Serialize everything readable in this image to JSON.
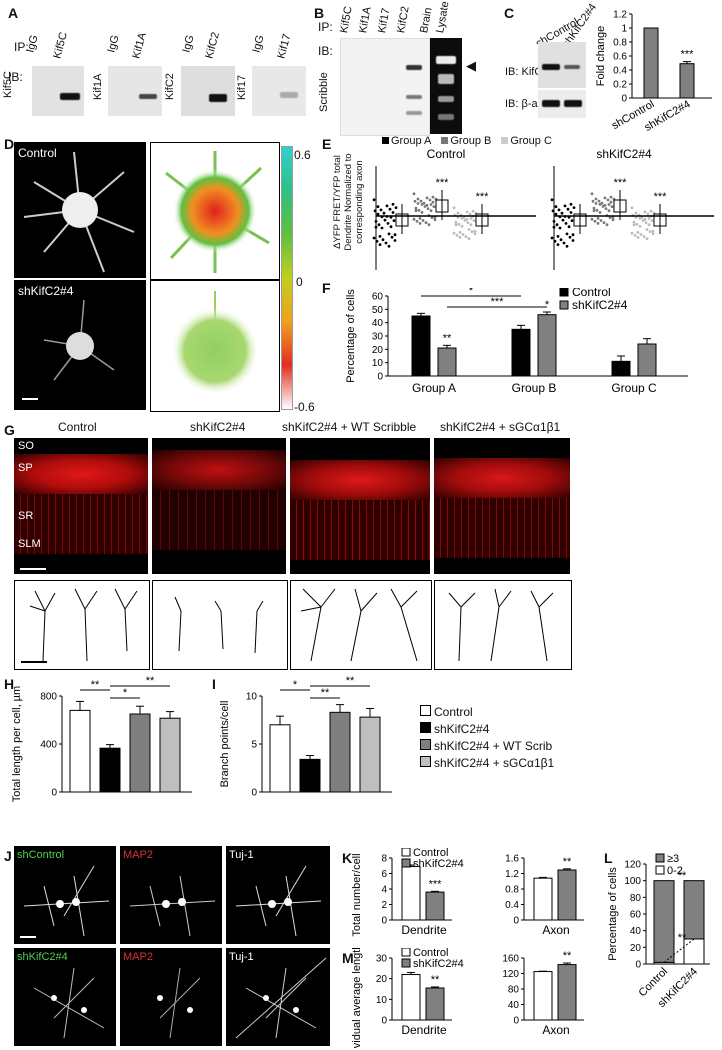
{
  "panels": {
    "A": {
      "letter": "A",
      "ip_label": "IP:",
      "ib_label": "IB:",
      "blots": [
        {
          "ib": "Kif5C",
          "lanes": [
            "IgG",
            "Kif5C"
          ]
        },
        {
          "ib": "Kif1A",
          "lanes": [
            "IgG",
            "Kif1A"
          ]
        },
        {
          "ib": "KifC2",
          "lanes": [
            "IgG",
            "KifC2"
          ]
        },
        {
          "ib": "Kif17",
          "lanes": [
            "IgG",
            "Kif17"
          ]
        }
      ]
    },
    "B": {
      "letter": "B",
      "ip_label": "IP:",
      "ib_label": "IB:",
      "ib_target": "Scribble",
      "lanes": [
        "Kif5C",
        "Kif1A",
        "Kif17",
        "KifC2",
        "Brain",
        "Lysate"
      ],
      "arrow": "◀"
    },
    "C": {
      "letter": "C",
      "lanes": [
        "shControl",
        "shKifC2#4"
      ],
      "ib_top": "IB: KifC2",
      "ib_bottom": "IB: β-actin",
      "ylabel": "Fold change",
      "sig": "***"
    },
    "D": {
      "letter": "D",
      "labels": [
        "Control",
        "shKifC2#4"
      ],
      "scale_max": "0.6",
      "scale_mid": "0",
      "scale_min": "-0.6"
    },
    "E": {
      "letter": "E",
      "legend": [
        "Group A",
        "Group B",
        "Group C"
      ],
      "ylabel_lines": [
        "ΔYFP FRET/YFP total",
        "Dendrite Normalized to",
        "corresponding axon"
      ],
      "subplots": [
        "Control",
        "shKifC2#4"
      ],
      "sig": "***"
    },
    "F": {
      "letter": "F"
    },
    "G": {
      "letter": "G",
      "columns": [
        "Control",
        "shKifC2#4",
        "shKifC2#4 + WT Scribble",
        "shKifC2#4 + sGCα1β1"
      ],
      "layers": [
        "SO",
        "SP",
        "SR",
        "SLM"
      ]
    },
    "H": {
      "letter": "H"
    },
    "I": {
      "letter": "I"
    },
    "HI_legend": [
      "Control",
      "shKifC2#4",
      "shKifC2#4 + WT Scrib",
      "shKifC2#4 + sGCα1β1"
    ],
    "J": {
      "letter": "J",
      "row1": [
        "shControl",
        "MAP2",
        "Tuj-1"
      ],
      "row2": [
        "shKifC2#4",
        "MAP2",
        "Tuj-1"
      ]
    },
    "K": {
      "letter": "K"
    },
    "L": {
      "letter": "L"
    },
    "M": {
      "letter": "M"
    }
  },
  "colors": {
    "control": "#000000",
    "shkifc2": "#808080",
    "wt_scrib": "#7f7f7f",
    "sgc": "#bfbfbf",
    "open": "#ffffff",
    "green_text": "#4ed04e",
    "red_text": "#e03030"
  },
  "chart_data": [
    {
      "id": "C-bar",
      "type": "bar",
      "categories": [
        "shControl",
        "shKifC2#4"
      ],
      "values": [
        1.0,
        0.49
      ],
      "errors": [
        0,
        0.03
      ],
      "ylabel": "Fold change",
      "ylim": [
        0,
        1.2
      ],
      "yticks": [
        0,
        0.2,
        0.4,
        0.6,
        0.8,
        1,
        1.2
      ],
      "sig": [
        "",
        "***"
      ]
    },
    {
      "id": "F-bar",
      "type": "bar",
      "categories": [
        "Group A",
        "Group B",
        "Group C"
      ],
      "series": [
        {
          "name": "Control",
          "values": [
            45,
            35,
            11
          ],
          "errors": [
            2,
            3,
            4
          ]
        },
        {
          "name": "shKifC2#4",
          "values": [
            21,
            46,
            24
          ],
          "errors": [
            2,
            2,
            4
          ]
        }
      ],
      "ylabel": "Percentage of cells",
      "ylim": [
        0,
        60
      ],
      "yticks": [
        0,
        10,
        20,
        30,
        40,
        50,
        60
      ],
      "annotations": [
        "**",
        "*",
        "*",
        "***"
      ]
    },
    {
      "id": "H-bar",
      "type": "bar",
      "categories": [
        "Control",
        "shKifC2#4",
        "shKifC2#4 + WT Scrib",
        "shKifC2#4 + sGCα1β1"
      ],
      "values": [
        680,
        365,
        650,
        615
      ],
      "errors": [
        75,
        30,
        65,
        55
      ],
      "ylabel": "Total length per cell, µm",
      "ylim": [
        0,
        800
      ],
      "yticks": [
        0,
        400,
        800
      ],
      "annotations": [
        "**",
        "*",
        "**"
      ]
    },
    {
      "id": "I-bar",
      "type": "bar",
      "categories": [
        "Control",
        "shKifC2#4",
        "shKifC2#4 + WT Scrib",
        "shKifC2#4 + sGCα1β1"
      ],
      "values": [
        7.0,
        3.4,
        8.3,
        7.8
      ],
      "errors": [
        0.9,
        0.4,
        0.8,
        0.9
      ],
      "ylabel": "Branch points/cell",
      "ylim": [
        0,
        10
      ],
      "yticks": [
        0,
        5,
        10
      ],
      "annotations": [
        "*",
        "**",
        "**"
      ]
    },
    {
      "id": "K-dendrite",
      "type": "bar",
      "categories": [
        "Dendrite"
      ],
      "series": [
        {
          "name": "Control",
          "values": [
            6.9
          ],
          "errors": [
            0.2
          ]
        },
        {
          "name": "shKifC2#4",
          "values": [
            3.6
          ],
          "errors": [
            0.1
          ]
        }
      ],
      "ylabel": "Total number/cell",
      "ylim": [
        0,
        8
      ],
      "yticks": [
        0,
        2,
        4,
        6,
        8
      ],
      "sig": "***"
    },
    {
      "id": "K-axon",
      "type": "bar",
      "categories": [
        "Axon"
      ],
      "series": [
        {
          "name": "Control",
          "values": [
            1.08
          ],
          "errors": [
            0.02
          ]
        },
        {
          "name": "shKifC2#4",
          "values": [
            1.29
          ],
          "errors": [
            0.03
          ]
        }
      ],
      "ylim": [
        0,
        1.6
      ],
      "yticks": [
        0,
        0.4,
        0.8,
        1.2,
        1.6
      ],
      "sig": "**"
    },
    {
      "id": "L-stacked",
      "type": "bar",
      "categories": [
        "Control",
        "shKifC2#4"
      ],
      "series": [
        {
          "name": "0-2",
          "values": [
            2,
            30
          ]
        },
        {
          "name": "≥3",
          "values": [
            98,
            70
          ]
        }
      ],
      "ylabel": "Percentage of cells",
      "ylim": [
        0,
        120
      ],
      "yticks": [
        0,
        20,
        40,
        60,
        80,
        100,
        120
      ],
      "sig": [
        "**",
        "**"
      ]
    },
    {
      "id": "M-dendrite",
      "type": "bar",
      "categories": [
        "Dendrite"
      ],
      "series": [
        {
          "name": "Control",
          "values": [
            22
          ],
          "errors": [
            1
          ]
        },
        {
          "name": "shKifC2#4",
          "values": [
            15.5
          ],
          "errors": [
            0.5
          ]
        }
      ],
      "ylabel": "Individual average length/cell",
      "ylim": [
        0,
        30
      ],
      "yticks": [
        0,
        10,
        20,
        30
      ],
      "sig": "**"
    },
    {
      "id": "M-axon",
      "type": "bar",
      "categories": [
        "Axon"
      ],
      "series": [
        {
          "name": "Control",
          "values": [
            125
          ],
          "errors": [
            1
          ]
        },
        {
          "name": "shKifC2#4",
          "values": [
            143
          ],
          "errors": [
            4
          ]
        }
      ],
      "ylim": [
        0,
        160
      ],
      "yticks": [
        0,
        40,
        80,
        120,
        160
      ],
      "sig": "**"
    }
  ]
}
